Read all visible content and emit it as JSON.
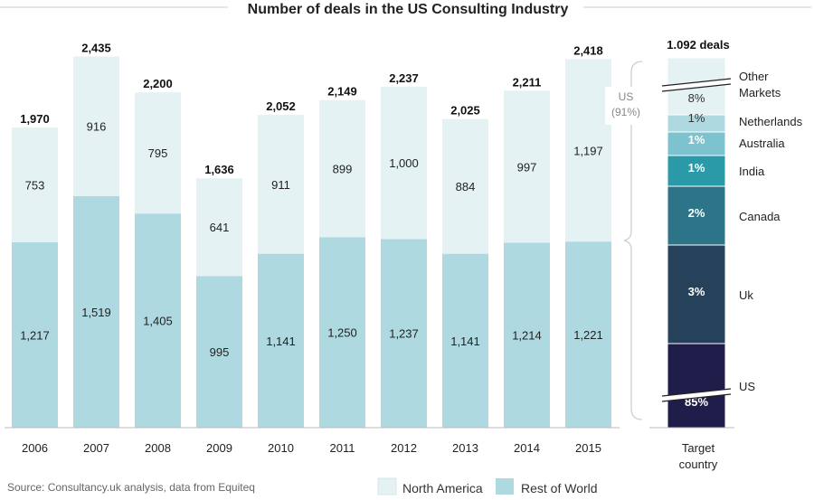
{
  "chart_data": [
    {
      "type": "bar",
      "title": "Number of deals in the US Consulting Industry",
      "categories": [
        "2006",
        "2007",
        "2008",
        "2009",
        "2010",
        "2011",
        "2012",
        "2013",
        "2014",
        "2015"
      ],
      "totals": [
        "1,970",
        "2,435",
        "2,200",
        "1,636",
        "2,052",
        "2,149",
        "2,237",
        "2,025",
        "2,211",
        "2,418"
      ],
      "series": [
        {
          "name": "Rest of World",
          "values": [
            1217,
            1519,
            1405,
            995,
            1141,
            1250,
            1237,
            1141,
            1214,
            1221
          ],
          "labels": [
            "1,217",
            "1,519",
            "1,405",
            "995",
            "1,141",
            "1,250",
            "1,237",
            "1,141",
            "1,214",
            "1,221"
          ]
        },
        {
          "name": "North America",
          "values": [
            753,
            916,
            795,
            641,
            911,
            899,
            1000,
            884,
            997,
            1197
          ],
          "labels": [
            "753",
            "916",
            "795",
            "641",
            "911",
            "899",
            "1,000",
            "884",
            "997",
            "1,197"
          ]
        }
      ],
      "stacked": true,
      "ylim": [
        0,
        2500
      ],
      "legend_placement": "bottom",
      "colors": {
        "Rest of World": "#aed9e0",
        "North America": "#e4f2f4"
      },
      "source": "Source: Consultancy.uk analysis, data from Equiteq"
    },
    {
      "type": "bar",
      "stacked": true,
      "category": "Target country",
      "total_label": "1.092 deals",
      "segments": [
        {
          "name": "US",
          "label": "85%",
          "value": 85,
          "color": "#1f1d4a"
        },
        {
          "name": "Uk",
          "label": "3%",
          "value": 3,
          "color": "#26425a"
        },
        {
          "name": "Canada",
          "label": "2%",
          "value": 2,
          "color": "#2e7489"
        },
        {
          "name": "India",
          "label": "1%",
          "value": 1,
          "color": "#2b9aa8"
        },
        {
          "name": "Australia",
          "label": "1%",
          "value": 1,
          "color": "#7cc2cf"
        },
        {
          "name": "Netherlands",
          "label": "1%",
          "value": 1,
          "color": "#aed9e0"
        },
        {
          "name": "Other Markets",
          "label": "8%",
          "value": 8,
          "color": "#e4f2f4"
        }
      ],
      "bracket_label": [
        "US",
        "(91%)"
      ]
    }
  ]
}
